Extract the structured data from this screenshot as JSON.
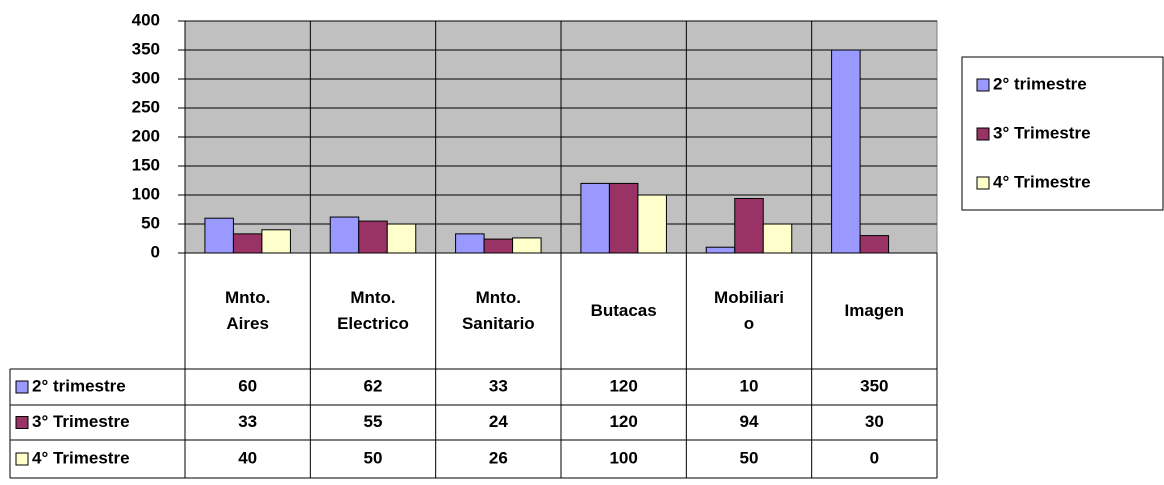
{
  "chart_data": {
    "type": "bar",
    "categories": [
      "Mnto. Aires",
      "Mnto. Electrico",
      "Mnto. Sanitario",
      "Butacas",
      "Mobiliario",
      "Imagen"
    ],
    "series": [
      {
        "name": "2° trimestre",
        "color": "#9999ff",
        "values": [
          60,
          62,
          33,
          120,
          10,
          350
        ]
      },
      {
        "name": "3° Trimestre",
        "color": "#993366",
        "values": [
          33,
          55,
          24,
          120,
          94,
          30
        ]
      },
      {
        "name": "4° Trimestre",
        "color": "#ffffcc",
        "values": [
          40,
          50,
          26,
          100,
          50,
          0
        ]
      }
    ],
    "ylim": [
      0,
      400
    ],
    "yticks": [
      0,
      50,
      100,
      150,
      200,
      250,
      300,
      350,
      400
    ],
    "grid": true,
    "legend": "right",
    "data_table": true
  }
}
